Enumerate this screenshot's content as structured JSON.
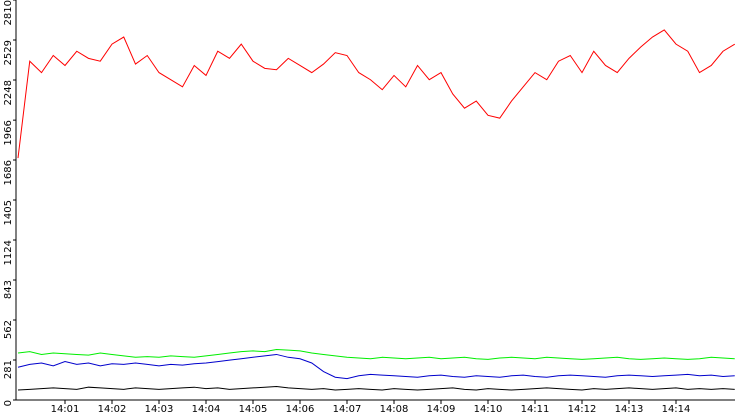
{
  "chart_data": {
    "type": "line",
    "categories": [
      null,
      null,
      null,
      null,
      "14:01",
      null,
      null,
      null,
      "14:02",
      null,
      null,
      null,
      "14:03",
      null,
      null,
      null,
      "14:04",
      null,
      null,
      null,
      "14:05",
      null,
      null,
      null,
      "14:06",
      null,
      null,
      null,
      "14:07",
      null,
      null,
      null,
      "14:08",
      null,
      null,
      null,
      "14:09",
      null,
      null,
      null,
      "14:10",
      null,
      null,
      null,
      "14:11",
      null,
      null,
      null,
      "14:12",
      null,
      null,
      null,
      "14:13",
      null,
      null,
      null,
      "14:14",
      null,
      null,
      null,
      null,
      null
    ],
    "series": [
      {
        "color": "#ff0000",
        "values": [
          1700,
          2380,
          2300,
          2420,
          2350,
          2450,
          2400,
          2380,
          2500,
          2550,
          2360,
          2420,
          2300,
          2250,
          2200,
          2350,
          2280,
          2450,
          2400,
          2500,
          2380,
          2330,
          2320,
          2400,
          2350,
          2300,
          2360,
          2440,
          2420,
          2300,
          2250,
          2180,
          2280,
          2200,
          2350,
          2250,
          2300,
          2150,
          2050,
          2100,
          2000,
          1980,
          2100,
          2200,
          2300,
          2250,
          2380,
          2420,
          2300,
          2450,
          2350,
          2300,
          2400,
          2480,
          2550,
          2600,
          2500,
          2450,
          2300,
          2350,
          2450,
          2500
        ]
      },
      {
        "color": "#00ee00",
        "values": [
          330,
          340,
          320,
          330,
          325,
          320,
          315,
          330,
          320,
          310,
          300,
          305,
          300,
          310,
          305,
          300,
          310,
          320,
          330,
          340,
          345,
          340,
          355,
          350,
          345,
          330,
          320,
          310,
          300,
          295,
          290,
          300,
          295,
          290,
          295,
          300,
          290,
          295,
          300,
          290,
          285,
          295,
          300,
          295,
          290,
          300,
          295,
          290,
          285,
          290,
          295,
          300,
          290,
          285,
          290,
          295,
          290,
          285,
          290,
          300,
          295,
          290
        ]
      },
      {
        "color": "#0000cc",
        "values": [
          230,
          250,
          260,
          240,
          270,
          250,
          260,
          240,
          255,
          250,
          260,
          250,
          240,
          250,
          245,
          255,
          260,
          270,
          280,
          290,
          300,
          310,
          320,
          300,
          290,
          260,
          200,
          160,
          150,
          170,
          180,
          175,
          170,
          165,
          160,
          170,
          175,
          165,
          160,
          170,
          165,
          160,
          170,
          175,
          165,
          160,
          170,
          175,
          170,
          165,
          160,
          170,
          175,
          170,
          165,
          170,
          175,
          180,
          170,
          175,
          165,
          170
        ]
      },
      {
        "color": "#000000",
        "values": [
          70,
          75,
          80,
          85,
          80,
          75,
          90,
          85,
          80,
          75,
          85,
          80,
          75,
          80,
          85,
          90,
          80,
          85,
          75,
          80,
          85,
          90,
          95,
          85,
          80,
          75,
          80,
          70,
          75,
          80,
          75,
          70,
          80,
          75,
          70,
          75,
          80,
          85,
          75,
          70,
          80,
          75,
          70,
          75,
          80,
          85,
          80,
          75,
          70,
          80,
          75,
          80,
          85,
          80,
          75,
          80,
          85,
          75,
          80,
          75,
          80,
          75
        ]
      }
    ],
    "ylim": [
      0,
      2810
    ],
    "yticks": [
      0,
      281,
      562,
      843,
      1124,
      1405,
      1686,
      1966,
      2248,
      2529,
      2810
    ]
  }
}
